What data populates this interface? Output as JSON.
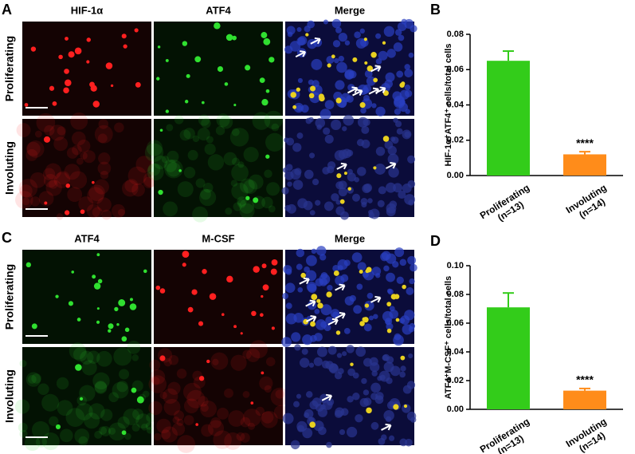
{
  "image_panels": [
    {
      "letter": "A",
      "columns": [
        "HIF-1α",
        "ATF4",
        "Merge"
      ],
      "rows": [
        "Proliferating",
        "Involuting"
      ]
    },
    {
      "letter": "C",
      "columns": [
        "ATF4",
        "M-CSF",
        "Merge"
      ],
      "rows": [
        "Proliferating",
        "Involuting"
      ]
    }
  ],
  "chart_data": [
    {
      "type": "bar",
      "panel_label": "B",
      "y_label": "HIF-1α⁺ATF4⁺ cells/total cells",
      "categories": [
        "Proliferating\n(n=13)",
        "Involuting\n(n=14)"
      ],
      "values": [
        0.065,
        0.012
      ],
      "errors": [
        0.0055,
        0.0015
      ],
      "colors": [
        "#33cc1a",
        "#ff8c1a"
      ],
      "annotations": [
        null,
        "****"
      ],
      "ylim": [
        0,
        0.08
      ],
      "yticks": [
        {
          "value": 0,
          "label": "0.00"
        },
        {
          "value": 0.02,
          "label": "0.02"
        },
        {
          "value": 0.04,
          "label": "0.04"
        },
        {
          "value": 0.06,
          "label": "0.06"
        },
        {
          "value": 0.08,
          "label": "0.08"
        }
      ]
    },
    {
      "type": "bar",
      "panel_label": "D",
      "y_label": "ATF4⁺M-CSF⁺ cells/total cells",
      "categories": [
        "Proliferating\n(n=13)",
        "Involuting\n(n=14)"
      ],
      "values": [
        0.071,
        0.013
      ],
      "errors": [
        0.01,
        0.0015
      ],
      "colors": [
        "#33cc1a",
        "#ff8c1a"
      ],
      "annotations": [
        null,
        "****"
      ],
      "ylim": [
        0,
        0.1
      ],
      "yticks": [
        {
          "value": 0,
          "label": "0.00"
        },
        {
          "value": 0.02,
          "label": "0.02"
        },
        {
          "value": 0.04,
          "label": "0.04"
        },
        {
          "value": 0.06,
          "label": "0.06"
        },
        {
          "value": 0.08,
          "label": "0.08"
        },
        {
          "value": 0.1,
          "label": "0.10"
        }
      ]
    }
  ]
}
